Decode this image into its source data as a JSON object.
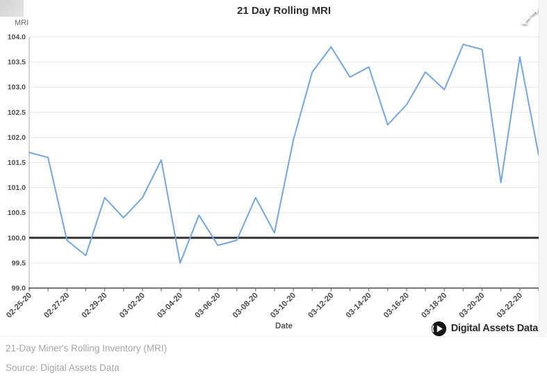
{
  "header": {
    "title": "21 Day Rolling MRI"
  },
  "icons": {
    "expand_icon": "diagonal-expand-arrows",
    "logo_icon": "play-circle"
  },
  "chart_data": {
    "type": "line",
    "title": "21 Day Rolling MRI",
    "xlabel": "Date",
    "ylabel": "MRI",
    "ylim": [
      99.0,
      104.0
    ],
    "y_ticks": [
      99.0,
      99.5,
      100.0,
      100.5,
      101.0,
      101.5,
      102.0,
      102.5,
      103.0,
      103.5,
      104.0
    ],
    "grid": true,
    "grid_color": "#e6e6e6",
    "x_label_every": 2,
    "x_label_rotation": -45,
    "x": [
      "02-25-20",
      "02-26-20",
      "02-27-20",
      "02-28-20",
      "02-29-20",
      "03-01-20",
      "03-02-20",
      "03-03-20",
      "03-04-20",
      "03-05-20",
      "03-06-20",
      "03-07-20",
      "03-08-20",
      "03-09-20",
      "03-10-20",
      "03-11-20",
      "03-12-20",
      "03-13-20",
      "03-14-20",
      "03-15-20",
      "03-16-20",
      "03-17-20",
      "03-18-20",
      "03-19-20",
      "03-20-20",
      "03-21-20",
      "03-22-20",
      "03-23-20"
    ],
    "x_tick_labels": [
      "02-25-20",
      "02-27-20",
      "02-29-20",
      "03-02-20",
      "03-04-20",
      "03-06-20",
      "03-08-20",
      "03-10-20",
      "03-12-20",
      "03-14-20",
      "03-16-20",
      "03-18-20",
      "03-20-20",
      "03-22-20"
    ],
    "series": [
      {
        "name": "21 Day Rolling MRI",
        "color": "#75a6db",
        "line_width": 2,
        "values": [
          101.7,
          101.6,
          99.95,
          99.65,
          100.8,
          100.4,
          100.8,
          101.55,
          99.5,
          100.45,
          99.85,
          99.95,
          100.8,
          100.1,
          101.95,
          103.3,
          103.8,
          103.2,
          103.4,
          102.25,
          102.65,
          103.3,
          102.95,
          103.85,
          103.75,
          101.1,
          103.6,
          101.65
        ]
      }
    ],
    "plot_line": {
      "value": 100.0,
      "color": "#333333",
      "width": 3
    },
    "legend": "none"
  },
  "branding": {
    "logo_text": "Digital Assets Data"
  },
  "footer": {
    "caption": "21-Day Miner's Rolling Inventory (MRI)",
    "source": "Source: Digital Assets Data"
  }
}
